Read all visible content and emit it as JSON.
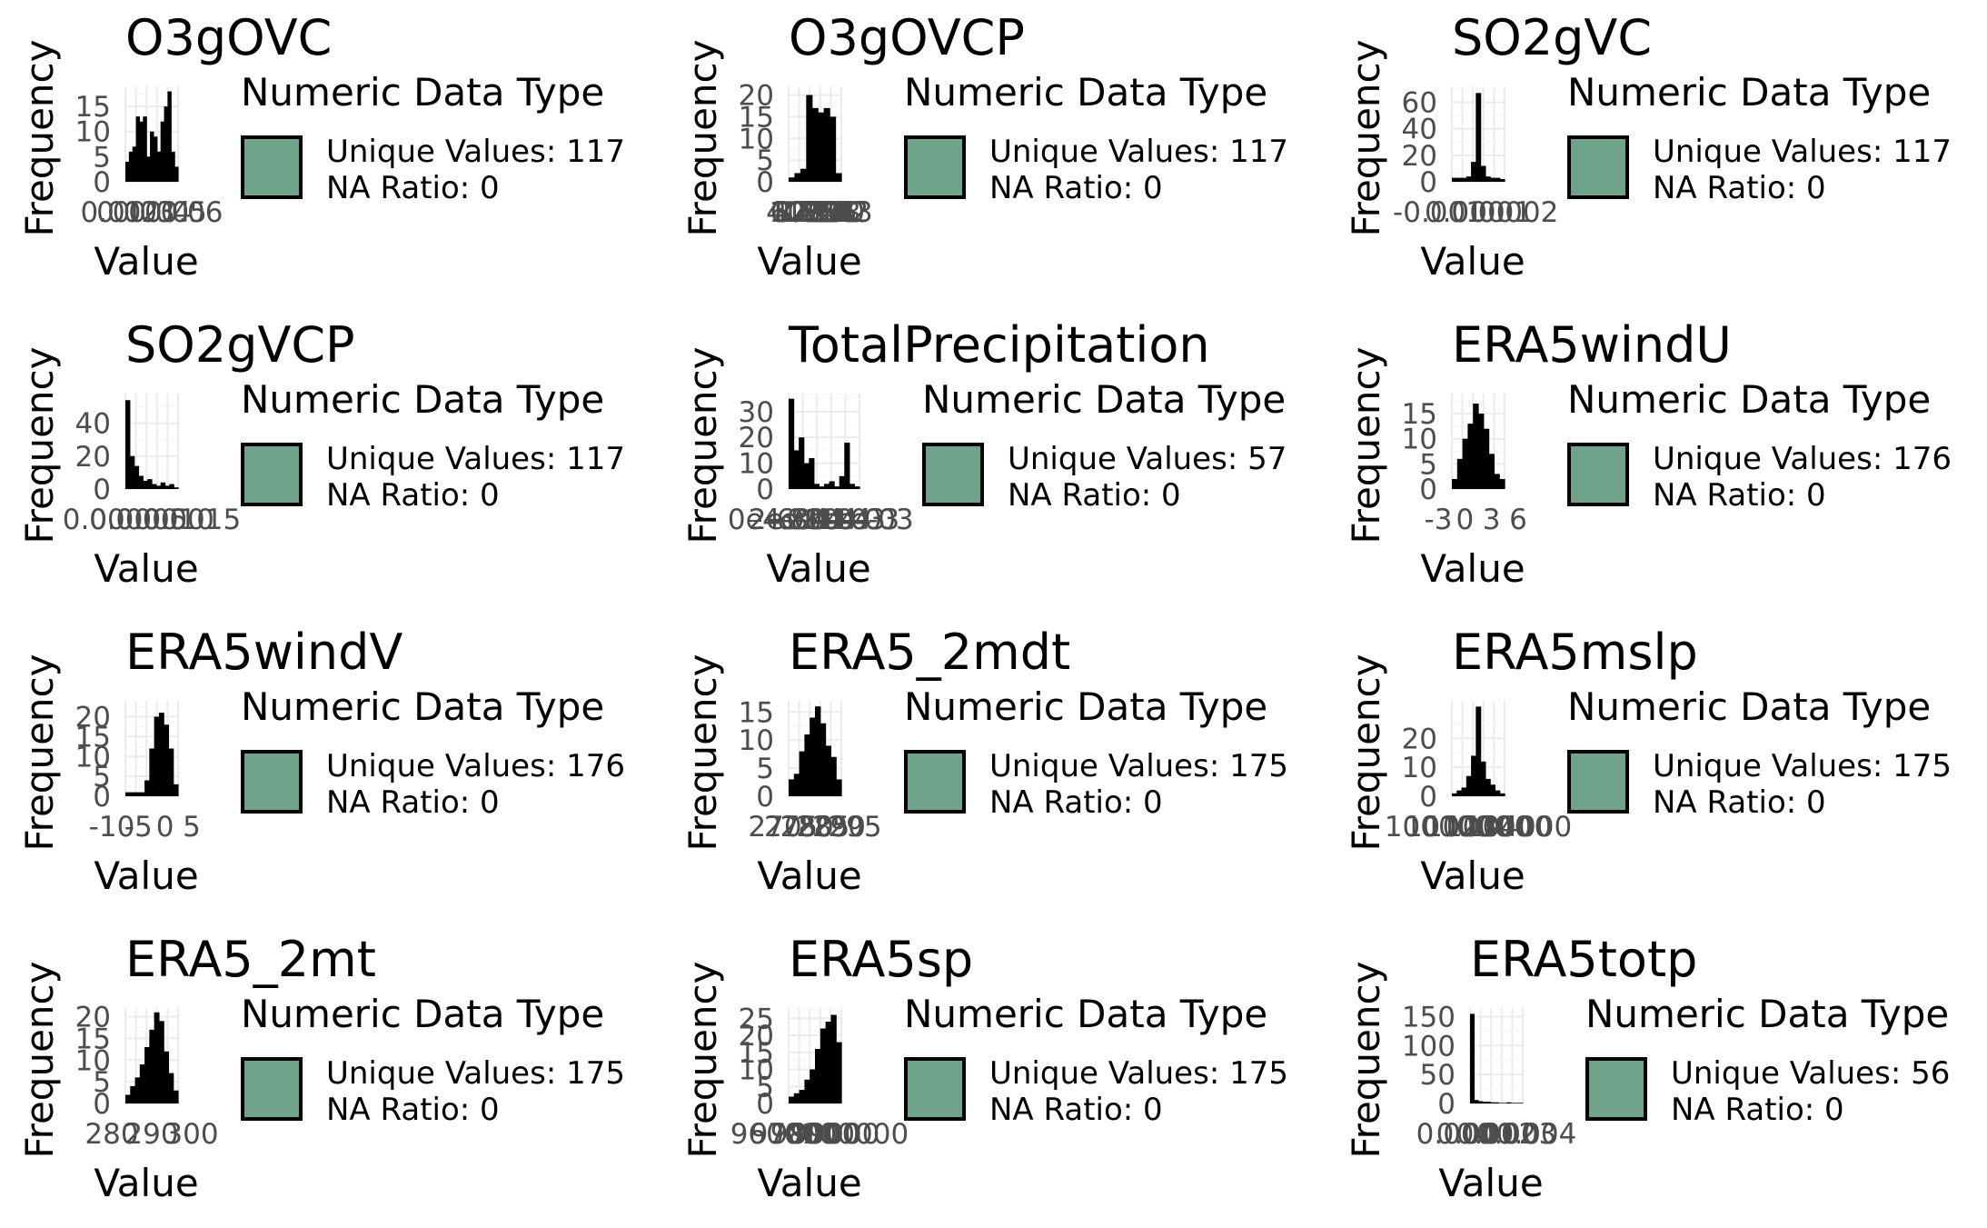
{
  "legend_fill_color": "#6fa38b",
  "bar_color": "#000000",
  "grid_color": "#ebebeb",
  "chart_data": [
    {
      "type": "bar",
      "title": "O3gOVC",
      "xlabel": "Value",
      "ylabel": "Frequency",
      "ytick_labels": [
        "0",
        "5",
        "10",
        "15"
      ],
      "xtick_labels": [
        "0.01",
        "0.02",
        "0.03",
        "0.04",
        "0.05",
        "0.06"
      ],
      "ylim": [
        0,
        19
      ],
      "values": [
        4,
        6,
        7,
        13,
        12,
        13,
        5,
        10,
        9,
        6,
        12,
        15,
        18,
        6,
        3
      ],
      "legend": {
        "title": "Numeric Data Type",
        "unique_values": "Unique Values: 117",
        "na_ratio": "NA Ratio: 0"
      }
    },
    {
      "type": "bar",
      "title": "O3gOVCP",
      "xlabel": "Value",
      "ylabel": "Frequency",
      "ytick_labels": [
        "0",
        "5",
        "10",
        "15",
        "20"
      ],
      "xtick_labels": [
        "4",
        "6",
        "8",
        "10",
        "12",
        "14",
        "16",
        "18",
        "20",
        "22",
        "24",
        "26",
        "28",
        "30",
        "32",
        "34",
        "36",
        "38",
        "40",
        "42",
        "43"
      ],
      "ylim": [
        0,
        22
      ],
      "values": [
        1,
        2,
        3,
        20,
        17,
        16,
        17,
        15,
        2
      ],
      "legend": {
        "title": "Numeric Data Type",
        "unique_values": "Unique Values: 117",
        "na_ratio": "NA Ratio: 0"
      }
    },
    {
      "type": "bar",
      "title": "SO2gVC",
      "xlabel": "Value",
      "ylabel": "Frequency",
      "ytick_labels": [
        "0",
        "20",
        "40",
        "60"
      ],
      "xtick_labels": [
        "-0.001",
        "0.000",
        "0.001",
        "0.002"
      ],
      "ylim": [
        0,
        72
      ],
      "values": [
        3,
        3,
        3,
        4,
        15,
        67,
        12,
        4,
        3,
        3,
        2
      ],
      "legend": {
        "title": "Numeric Data Type",
        "unique_values": "Unique Values: 117",
        "na_ratio": "NA Ratio: 0"
      }
    },
    {
      "type": "bar",
      "title": "SO2gVCP",
      "xlabel": "Value",
      "ylabel": "Frequency",
      "ytick_labels": [
        "0",
        "20",
        "40"
      ],
      "xtick_labels": [
        "0.0000",
        "0.0005",
        "0.0010",
        "0.0015"
      ],
      "ylim": [
        0,
        58
      ],
      "values": [
        54,
        20,
        14,
        8,
        5,
        6,
        3,
        2,
        4,
        2,
        3,
        1
      ],
      "legend": {
        "title": "Numeric Data Type",
        "unique_values": "Unique Values: 117",
        "na_ratio": "NA Ratio: 0"
      }
    },
    {
      "type": "bar",
      "title": "TotalPrecipitation",
      "xlabel": "Value",
      "ylabel": "Frequency",
      "ytick_labels": [
        "0",
        "10",
        "20",
        "30"
      ],
      "xtick_labels": [
        "0e+00",
        "2e-04",
        "4e-04",
        "6e-04",
        "8e-04",
        "1e-03",
        "1e-03",
        "1e-03"
      ],
      "ylim": [
        0,
        37
      ],
      "values": [
        35,
        15,
        20,
        10,
        12,
        2,
        1,
        2,
        3,
        1,
        5,
        18,
        2,
        1
      ],
      "legend": {
        "title": "Numeric Data Type",
        "unique_values": "Unique Values: 57",
        "na_ratio": "NA Ratio: 0"
      }
    },
    {
      "type": "bar",
      "title": "ERA5windU",
      "xlabel": "Value",
      "ylabel": "Frequency",
      "ytick_labels": [
        "0",
        "5",
        "10",
        "15"
      ],
      "xtick_labels": [
        "-3",
        "0",
        "3",
        "6"
      ],
      "ylim": [
        0,
        19
      ],
      "values": [
        2,
        6,
        10,
        13,
        17,
        15,
        12,
        7,
        3,
        2
      ],
      "legend": {
        "title": "Numeric Data Type",
        "unique_values": "Unique Values: 176",
        "na_ratio": "NA Ratio: 0"
      }
    },
    {
      "type": "bar",
      "title": "ERA5windV",
      "xlabel": "Value",
      "ylabel": "Frequency",
      "ytick_labels": [
        "0",
        "5",
        "10",
        "15",
        "20"
      ],
      "xtick_labels": [
        "-10",
        "-5",
        "0",
        "5"
      ],
      "ylim": [
        0,
        24
      ],
      "values": [
        1,
        1,
        1,
        1,
        4,
        12,
        20,
        21,
        18,
        12,
        3
      ],
      "legend": {
        "title": "Numeric Data Type",
        "unique_values": "Unique Values: 176",
        "na_ratio": "NA Ratio: 0"
      }
    },
    {
      "type": "bar",
      "title": "ERA5_2mdt",
      "xlabel": "Value",
      "ylabel": "Frequency",
      "ytick_labels": [
        "0",
        "5",
        "10",
        "15"
      ],
      "xtick_labels": [
        "270",
        "275",
        "280",
        "285",
        "290",
        "295"
      ],
      "ylim": [
        0,
        17
      ],
      "values": [
        3,
        4,
        8,
        11,
        14,
        16,
        13,
        9,
        7,
        3
      ],
      "legend": {
        "title": "Numeric Data Type",
        "unique_values": "Unique Values: 175",
        "na_ratio": "NA Ratio: 0"
      }
    },
    {
      "type": "bar",
      "title": "ERA5mslp",
      "xlabel": "Value",
      "ylabel": "Frequency",
      "ytick_labels": [
        "0",
        "10",
        "20"
      ],
      "xtick_labels": [
        "100000",
        "101000",
        "102000",
        "103000",
        "104000"
      ],
      "ylim": [
        0,
        33
      ],
      "values": [
        1,
        2,
        3,
        7,
        14,
        31,
        12,
        6,
        4,
        2,
        1
      ],
      "legend": {
        "title": "Numeric Data Type",
        "unique_values": "Unique Values: 175",
        "na_ratio": "NA Ratio: 0"
      }
    },
    {
      "type": "bar",
      "title": "ERA5_2mt",
      "xlabel": "Value",
      "ylabel": "Frequency",
      "ytick_labels": [
        "0",
        "5",
        "10",
        "15",
        "20"
      ],
      "xtick_labels": [
        "280",
        "290",
        "300"
      ],
      "ylim": [
        0,
        22
      ],
      "values": [
        2,
        4,
        6,
        9,
        13,
        17,
        21,
        19,
        12,
        7,
        3
      ],
      "legend": {
        "title": "Numeric Data Type",
        "unique_values": "Unique Values: 175",
        "na_ratio": "NA Ratio: 0"
      }
    },
    {
      "type": "bar",
      "title": "ERA5sp",
      "xlabel": "Value",
      "ylabel": "Frequency",
      "ytick_labels": [
        "0",
        "5",
        "10",
        "15",
        "20",
        "25"
      ],
      "xtick_labels": [
        "96000",
        "97000",
        "98000",
        "99000",
        "100000"
      ],
      "ylim": [
        0,
        28
      ],
      "values": [
        2,
        3,
        4,
        7,
        10,
        16,
        22,
        24,
        26,
        18
      ],
      "legend": {
        "title": "Numeric Data Type",
        "unique_values": "Unique Values: 175",
        "na_ratio": "NA Ratio: 0"
      }
    },
    {
      "type": "bar",
      "title": "ERA5totp",
      "xlabel": "Value",
      "ylabel": "Frequency",
      "ytick_labels": [
        "0",
        "50",
        "100",
        "150"
      ],
      "xtick_labels": [
        "0.000",
        "0.001",
        "0.002",
        "0.003",
        "0.004"
      ],
      "ylim": [
        0,
        165
      ],
      "values": [
        155,
        6,
        4,
        3,
        3,
        2,
        2,
        1,
        1,
        2,
        1,
        1,
        1
      ],
      "legend": {
        "title": "Numeric Data Type",
        "unique_values": "Unique Values: 56",
        "na_ratio": "NA Ratio: 0"
      }
    }
  ]
}
